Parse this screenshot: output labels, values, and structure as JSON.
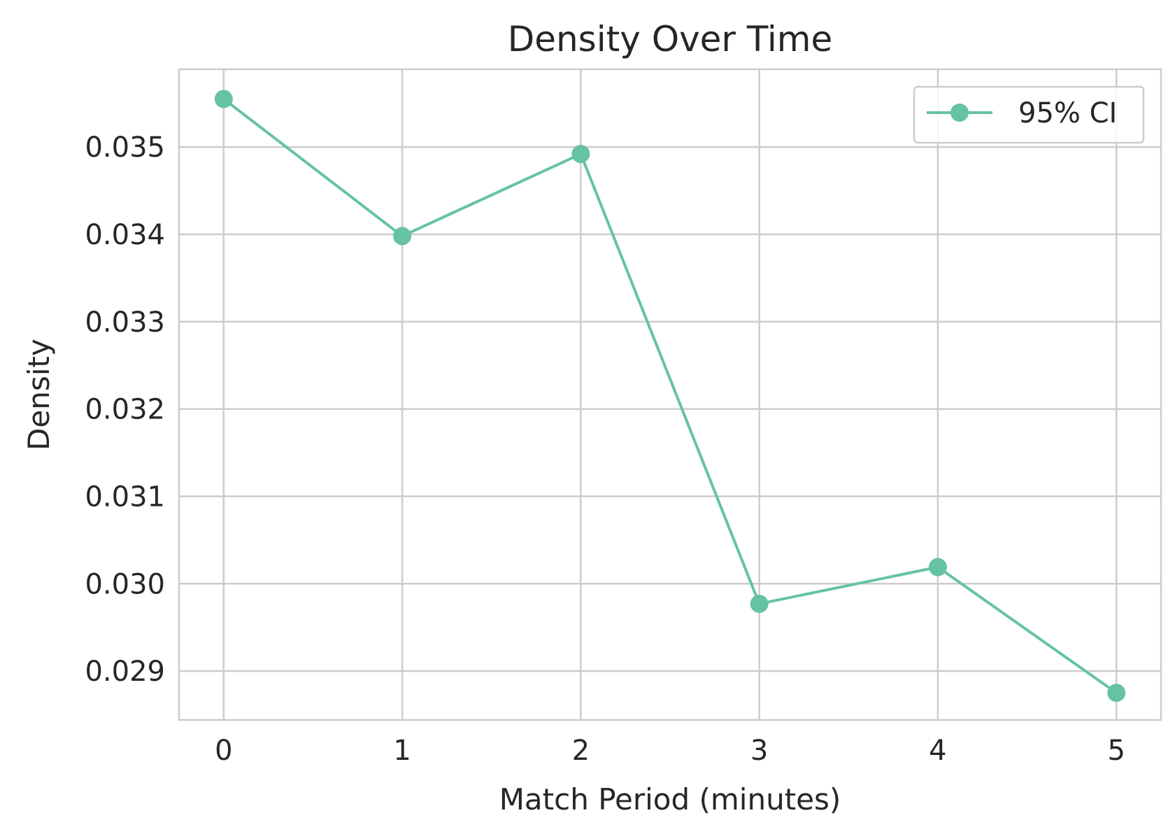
{
  "chart_data": {
    "type": "line",
    "title": "Density Over Time",
    "xlabel": "Match Period (minutes)",
    "ylabel": "Density",
    "x": [
      0,
      1,
      2,
      3,
      4,
      5
    ],
    "x_tick_labels": [
      "0",
      "1",
      "2",
      "3",
      "4",
      "5"
    ],
    "y_ticks": [
      0.029,
      0.03,
      0.031,
      0.032,
      0.033,
      0.034,
      0.035
    ],
    "y_tick_labels": [
      "0.029",
      "0.030",
      "0.031",
      "0.032",
      "0.033",
      "0.034",
      "0.035"
    ],
    "xlim": [
      -0.25,
      5.25
    ],
    "ylim": [
      0.02844,
      0.03589
    ],
    "grid": true,
    "legend_position": "top-right",
    "series": [
      {
        "name": "95% CI",
        "color": "#66c2a5",
        "marker": "circle",
        "values": [
          0.03555,
          0.03398,
          0.03492,
          0.02977,
          0.03019,
          0.02875
        ]
      }
    ]
  }
}
